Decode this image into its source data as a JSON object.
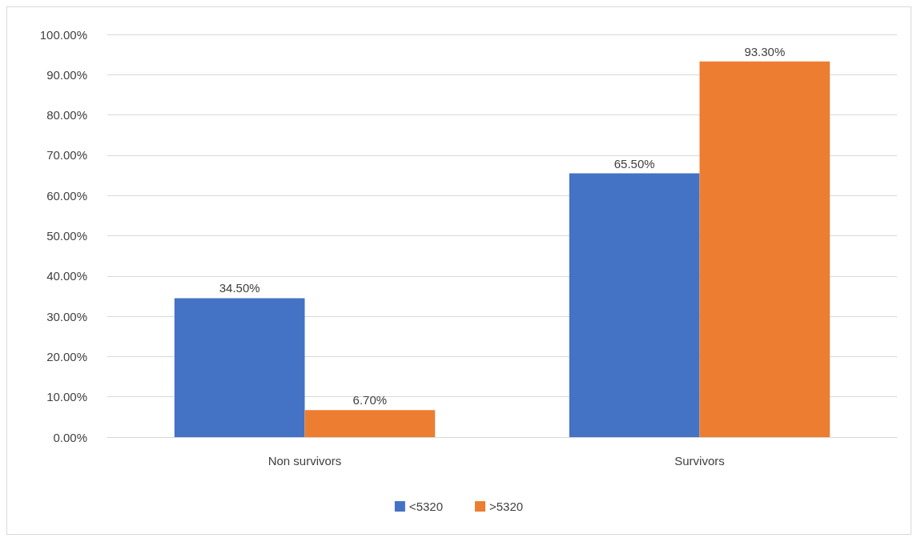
{
  "chart_data": {
    "type": "bar",
    "categories": [
      "Non survivors",
      "Survivors"
    ],
    "series": [
      {
        "name": "<5320",
        "color": "#4472c4",
        "values": [
          34.5,
          65.5
        ],
        "value_labels": [
          "34.50%",
          "65.50%"
        ]
      },
      {
        "name": ">5320",
        "color": "#ed7d31",
        "values": [
          6.7,
          93.3
        ],
        "value_labels": [
          "6.70%",
          "93.30%"
        ]
      }
    ],
    "ylim": [
      0,
      100
    ],
    "yticks": [
      {
        "value": 0,
        "label": "0.00%"
      },
      {
        "value": 10,
        "label": "10.00%"
      },
      {
        "value": 20,
        "label": "20.00%"
      },
      {
        "value": 30,
        "label": "30.00%"
      },
      {
        "value": 40,
        "label": "40.00%"
      },
      {
        "value": 50,
        "label": "50.00%"
      },
      {
        "value": 60,
        "label": "60.00%"
      },
      {
        "value": 70,
        "label": "70.00%"
      },
      {
        "value": 80,
        "label": "80.00%"
      },
      {
        "value": 90,
        "label": "90.00%"
      },
      {
        "value": 100,
        "label": "100.00%"
      }
    ],
    "grid": "y",
    "legend": "bottom"
  }
}
